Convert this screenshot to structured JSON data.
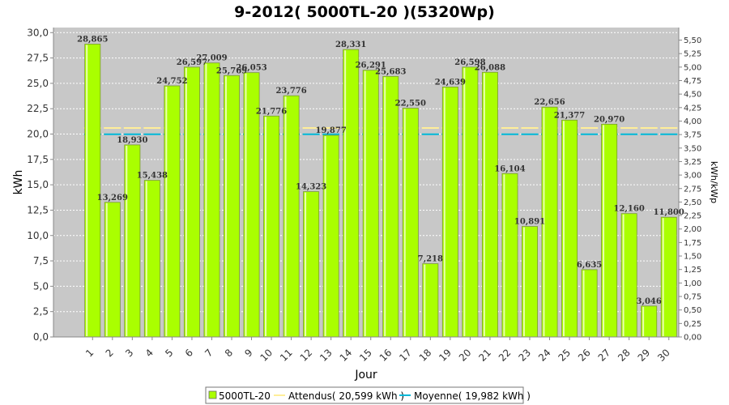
{
  "chart_data": {
    "type": "bar",
    "title": "9-2012( 5000TL-20 )(5320Wp)",
    "xlabel": "Jour",
    "ylabel": "kWh",
    "y2label": "kWh/kWp",
    "ylim": [
      0,
      30.5
    ],
    "y2lim": [
      0,
      5.733
    ],
    "yticks": [
      "0,0",
      "2,5",
      "5,0",
      "7,5",
      "10,0",
      "12,5",
      "15,0",
      "17,5",
      "20,0",
      "22,5",
      "25,0",
      "27,5",
      "30,0"
    ],
    "y2ticks": [
      "0,00",
      "0,25",
      "0,50",
      "0,75",
      "1,00",
      "1,25",
      "1,50",
      "1,75",
      "2,00",
      "2,25",
      "2,50",
      "2,75",
      "3,00",
      "3,25",
      "3,50",
      "3,75",
      "4,00",
      "4,25",
      "4,50",
      "4,75",
      "5,00",
      "5,25",
      "5,50"
    ],
    "categories": [
      "1",
      "2",
      "3",
      "4",
      "5",
      "6",
      "7",
      "8",
      "9",
      "10",
      "11",
      "12",
      "13",
      "14",
      "15",
      "16",
      "17",
      "18",
      "19",
      "20",
      "21",
      "22",
      "23",
      "24",
      "25",
      "26",
      "27",
      "28",
      "29",
      "30"
    ],
    "series": [
      {
        "name": "5000TL-20",
        "values": [
          28.865,
          13.269,
          18.93,
          15.438,
          24.752,
          26.597,
          27.009,
          25.769,
          26.053,
          21.776,
          23.776,
          14.323,
          19.877,
          28.331,
          26.291,
          25.683,
          22.55,
          7.218,
          24.639,
          26.598,
          26.088,
          16.104,
          10.891,
          22.656,
          21.377,
          6.635,
          20.97,
          12.16,
          3.046,
          11.8
        ],
        "labels": [
          "28,865",
          "13,269",
          "18,930",
          "15,438",
          "24,752",
          "26,597",
          "27,009",
          "25,769",
          "26,053",
          "21,776",
          "23,776",
          "14,323",
          "19,877",
          "28,331",
          "26,291",
          "25,683",
          "22,550",
          "7,218",
          "24,639",
          "26,598",
          "26,088",
          "16,104",
          "10,891",
          "22,656",
          "21,377",
          "6,635",
          "20,970",
          "12,160",
          "3,046",
          "11,800"
        ]
      }
    ],
    "reference_lines": [
      {
        "name": "Attendus( 20,599 kWh )",
        "value": 20.599,
        "color": "#ffee99"
      },
      {
        "name": "Moyenne( 19,982 kWh )",
        "value": 19.982,
        "color": "#00b8d8"
      }
    ],
    "colors": {
      "bar": "#aaff00",
      "plot_bg": "#c8c8c8",
      "grid": "#ffffff"
    },
    "grid": true,
    "legend_position": "bottom"
  }
}
